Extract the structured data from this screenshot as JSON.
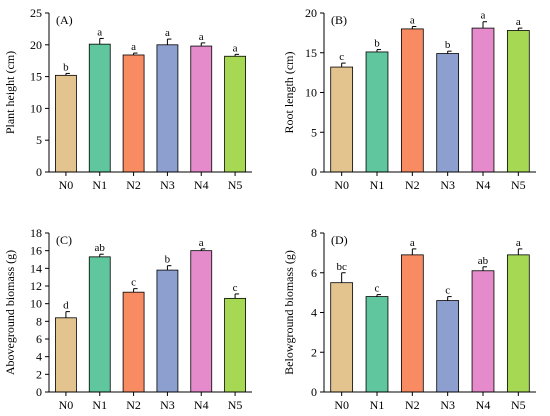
{
  "colors": {
    "N0": "#E3C48E",
    "N1": "#5FC69E",
    "N2": "#F98B62",
    "N3": "#8D9FCF",
    "N4": "#E58BCB",
    "N5": "#A6D853",
    "axis": "#000000",
    "error_bar": "#000000"
  },
  "chart_data": [
    {
      "type": "bar",
      "panel_label": "(A)",
      "ylabel": "Plant height (cm)",
      "categories": [
        "N0",
        "N1",
        "N2",
        "N3",
        "N4",
        "N5"
      ],
      "values": [
        15.2,
        20.1,
        18.4,
        20.0,
        19.8,
        18.2
      ],
      "errors": [
        0.3,
        0.9,
        0.3,
        0.9,
        0.5,
        0.3
      ],
      "significance": [
        "b",
        "a",
        "a",
        "a",
        "a",
        "a"
      ],
      "ylim": [
        0,
        25
      ],
      "yticks": [
        0,
        5,
        10,
        15,
        20,
        25
      ]
    },
    {
      "type": "bar",
      "panel_label": "(B)",
      "ylabel": "Root length (cm)",
      "categories": [
        "N0",
        "N1",
        "N2",
        "N3",
        "N4",
        "N5"
      ],
      "values": [
        13.2,
        15.1,
        18.0,
        14.9,
        18.1,
        17.8
      ],
      "errors": [
        0.5,
        0.3,
        0.3,
        0.3,
        0.8,
        0.3
      ],
      "significance": [
        "c",
        "b",
        "a",
        "b",
        "a",
        "a"
      ],
      "ylim": [
        0,
        20
      ],
      "yticks": [
        0,
        5,
        10,
        15,
        20
      ]
    },
    {
      "type": "bar",
      "panel_label": "(C)",
      "ylabel": "Aboveground biomass (g)",
      "categories": [
        "N0",
        "N1",
        "N2",
        "N3",
        "N4",
        "N5"
      ],
      "values": [
        8.4,
        15.3,
        11.3,
        13.8,
        16.0,
        10.6
      ],
      "errors": [
        0.7,
        0.3,
        0.4,
        0.5,
        0.2,
        0.5
      ],
      "significance": [
        "d",
        "ab",
        "c",
        "b",
        "a",
        "c"
      ],
      "ylim": [
        0,
        18
      ],
      "yticks": [
        0,
        2,
        4,
        6,
        8,
        10,
        12,
        14,
        16,
        18
      ]
    },
    {
      "type": "bar",
      "panel_label": "(D)",
      "ylabel": "Belowground biomass (g)",
      "categories": [
        "N0",
        "N1",
        "N2",
        "N3",
        "N4",
        "N5"
      ],
      "values": [
        5.5,
        4.8,
        6.9,
        4.6,
        6.1,
        6.9
      ],
      "errors": [
        0.5,
        0.1,
        0.3,
        0.2,
        0.2,
        0.3
      ],
      "significance": [
        "bc",
        "c",
        "a",
        "c",
        "ab",
        "a"
      ],
      "ylim": [
        0,
        8
      ],
      "yticks": [
        0,
        2,
        4,
        6,
        8
      ]
    }
  ]
}
